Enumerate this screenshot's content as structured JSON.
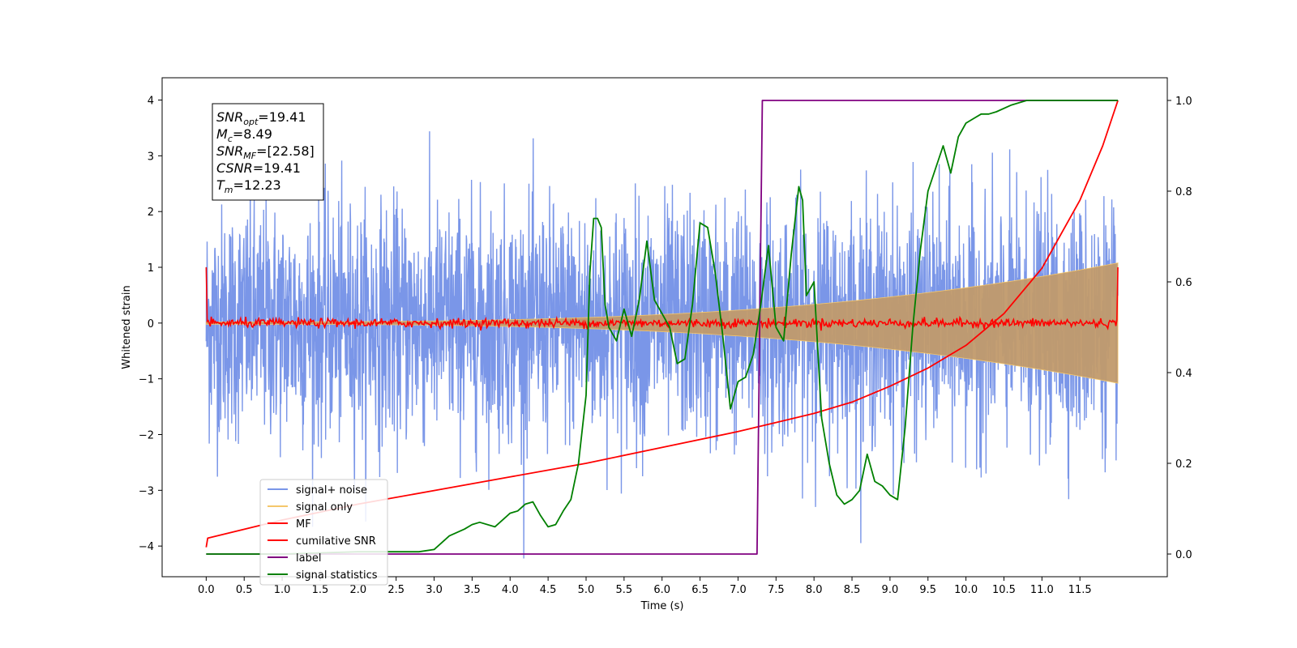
{
  "chart_data": {
    "type": "line",
    "title": "",
    "xlabel": "Time (s)",
    "ylabel": "Whitened strain",
    "y2label": "",
    "xlim": [
      -0.58,
      12.65
    ],
    "ylim": [
      -4.55,
      4.4
    ],
    "y2lim": [
      -0.05,
      1.05
    ],
    "x_ticks": [
      0.0,
      0.5,
      1.0,
      1.5,
      2.0,
      2.5,
      3.0,
      3.5,
      4.0,
      4.5,
      5.0,
      5.5,
      6.0,
      6.5,
      7.0,
      7.5,
      8.0,
      8.5,
      9.0,
      9.5,
      10.0,
      10.5,
      11.0,
      11.5
    ],
    "x_tick_labels": [
      "0.0",
      "0.5",
      "1.0",
      "1.5",
      "2.0",
      "2.5",
      "3.0",
      "3.5",
      "4.0",
      "4.5",
      "5.0",
      "5.5",
      "6.0",
      "6.5",
      "7.0",
      "7.5",
      "8.0",
      "8.5",
      "9.0",
      "9.5",
      "10.0",
      "10.5",
      "11.0",
      "11.5"
    ],
    "y_ticks": [
      -4,
      -3,
      -2,
      -1,
      0,
      1,
      2,
      3,
      4
    ],
    "y_tick_labels": [
      "−4",
      "−3",
      "−2",
      "−1",
      "0",
      "1",
      "2",
      "3",
      "4"
    ],
    "y2_ticks": [
      0.0,
      0.2,
      0.4,
      0.6,
      0.8,
      1.0
    ],
    "y2_tick_labels": [
      "0.0",
      "0.2",
      "0.4",
      "0.6",
      "0.8",
      "1.0"
    ],
    "grid": false,
    "legend_position": "lower-left",
    "series": [
      {
        "name": "signal+ noise",
        "axis": "left",
        "color": "#7a96e8",
        "kind": "noise",
        "x_range": [
          0,
          12
        ],
        "amplitude_sigma": 1.0
      },
      {
        "name": "signal only",
        "axis": "left",
        "color": "#f5c76b",
        "kind": "chirp",
        "x_range": [
          0,
          12
        ],
        "amplitude_start": 0.02,
        "amplitude_end": 1.0
      },
      {
        "name": "MF",
        "axis": "left",
        "color": "#ff0000",
        "kind": "mf",
        "x_range": [
          0,
          12
        ],
        "endpoint_value": 1.0
      },
      {
        "name": "cumilative SNR",
        "axis": "right",
        "color": "#ff0000",
        "x": [
          0.0,
          0.02,
          1.0,
          2.0,
          3.0,
          4.0,
          5.0,
          6.0,
          7.0,
          7.5,
          8.0,
          8.5,
          9.0,
          9.5,
          10.0,
          10.5,
          11.0,
          11.5,
          11.8,
          12.0
        ],
        "values": [
          0.015,
          0.035,
          0.075,
          0.11,
          0.14,
          0.17,
          0.2,
          0.235,
          0.27,
          0.29,
          0.31,
          0.335,
          0.37,
          0.41,
          0.46,
          0.53,
          0.63,
          0.78,
          0.9,
          1.0
        ]
      },
      {
        "name": "label",
        "axis": "right",
        "color": "#800080",
        "x": [
          0.0,
          7.25,
          7.32,
          12.0
        ],
        "values": [
          0.0,
          0.0,
          1.0,
          1.0
        ]
      },
      {
        "name": "signal statistics",
        "axis": "right",
        "color": "#008000",
        "x": [
          0.0,
          1.0,
          2.0,
          2.8,
          3.0,
          3.2,
          3.4,
          3.5,
          3.6,
          3.8,
          4.0,
          4.1,
          4.2,
          4.3,
          4.4,
          4.5,
          4.6,
          4.7,
          4.8,
          4.9,
          5.0,
          5.05,
          5.1,
          5.15,
          5.2,
          5.25,
          5.3,
          5.4,
          5.5,
          5.6,
          5.7,
          5.8,
          5.9,
          6.0,
          6.1,
          6.2,
          6.3,
          6.4,
          6.5,
          6.6,
          6.7,
          6.8,
          6.9,
          7.0,
          7.1,
          7.2,
          7.3,
          7.4,
          7.5,
          7.6,
          7.7,
          7.8,
          7.85,
          7.9,
          8.0,
          8.1,
          8.2,
          8.3,
          8.4,
          8.5,
          8.6,
          8.7,
          8.8,
          8.9,
          9.0,
          9.1,
          9.2,
          9.3,
          9.4,
          9.5,
          9.6,
          9.7,
          9.8,
          9.9,
          10.0,
          10.1,
          10.2,
          10.3,
          10.4,
          10.6,
          10.8,
          11.0,
          11.5,
          12.0
        ],
        "values": [
          0.0,
          0.0,
          0.005,
          0.005,
          0.01,
          0.04,
          0.055,
          0.065,
          0.07,
          0.06,
          0.09,
          0.095,
          0.11,
          0.115,
          0.085,
          0.06,
          0.065,
          0.095,
          0.12,
          0.2,
          0.35,
          0.62,
          0.74,
          0.74,
          0.72,
          0.55,
          0.5,
          0.47,
          0.54,
          0.48,
          0.56,
          0.69,
          0.56,
          0.53,
          0.5,
          0.42,
          0.43,
          0.55,
          0.73,
          0.72,
          0.62,
          0.48,
          0.32,
          0.38,
          0.39,
          0.44,
          0.55,
          0.68,
          0.5,
          0.47,
          0.66,
          0.81,
          0.78,
          0.57,
          0.6,
          0.3,
          0.2,
          0.13,
          0.11,
          0.12,
          0.14,
          0.22,
          0.16,
          0.15,
          0.13,
          0.12,
          0.28,
          0.5,
          0.67,
          0.8,
          0.85,
          0.9,
          0.84,
          0.92,
          0.95,
          0.96,
          0.97,
          0.97,
          0.975,
          0.99,
          1.0,
          1.0,
          1.0,
          1.0
        ]
      }
    ],
    "annotations": [
      {
        "label": "SNR",
        "sub": "opt",
        "text": "=19.41"
      },
      {
        "label": "M",
        "sub": "c",
        "text": "=8.49"
      },
      {
        "label": "SNR",
        "sub": "MF",
        "text": "=[22.58]"
      },
      {
        "label": "CSNR",
        "sub": "",
        "text": "=19.41"
      },
      {
        "label": "T",
        "sub": "m",
        "text": "=12.23"
      }
    ]
  }
}
